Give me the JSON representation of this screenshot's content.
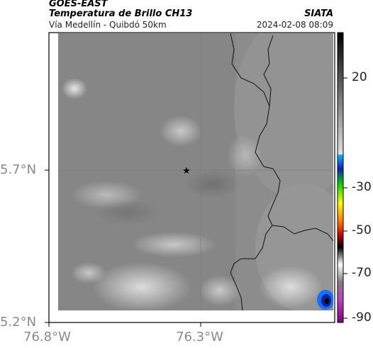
{
  "header": {
    "satellite": "GOES-EAST",
    "product": "Temperatura de Brillo CH13",
    "region": "Vía Medellín - Quibdó 50km",
    "agency": "SIATA",
    "datetime": "2024-02-08 08:09"
  },
  "axes": {
    "lat_labels": [
      "5.7°N",
      "5.2°N"
    ],
    "lon_labels": [
      "76.8°W",
      "76.3°W"
    ]
  },
  "colorbar": {
    "ticks": [
      "20",
      "-30",
      "-50",
      "-70",
      "-90"
    ]
  },
  "marker": {
    "name": "star-marker"
  }
}
